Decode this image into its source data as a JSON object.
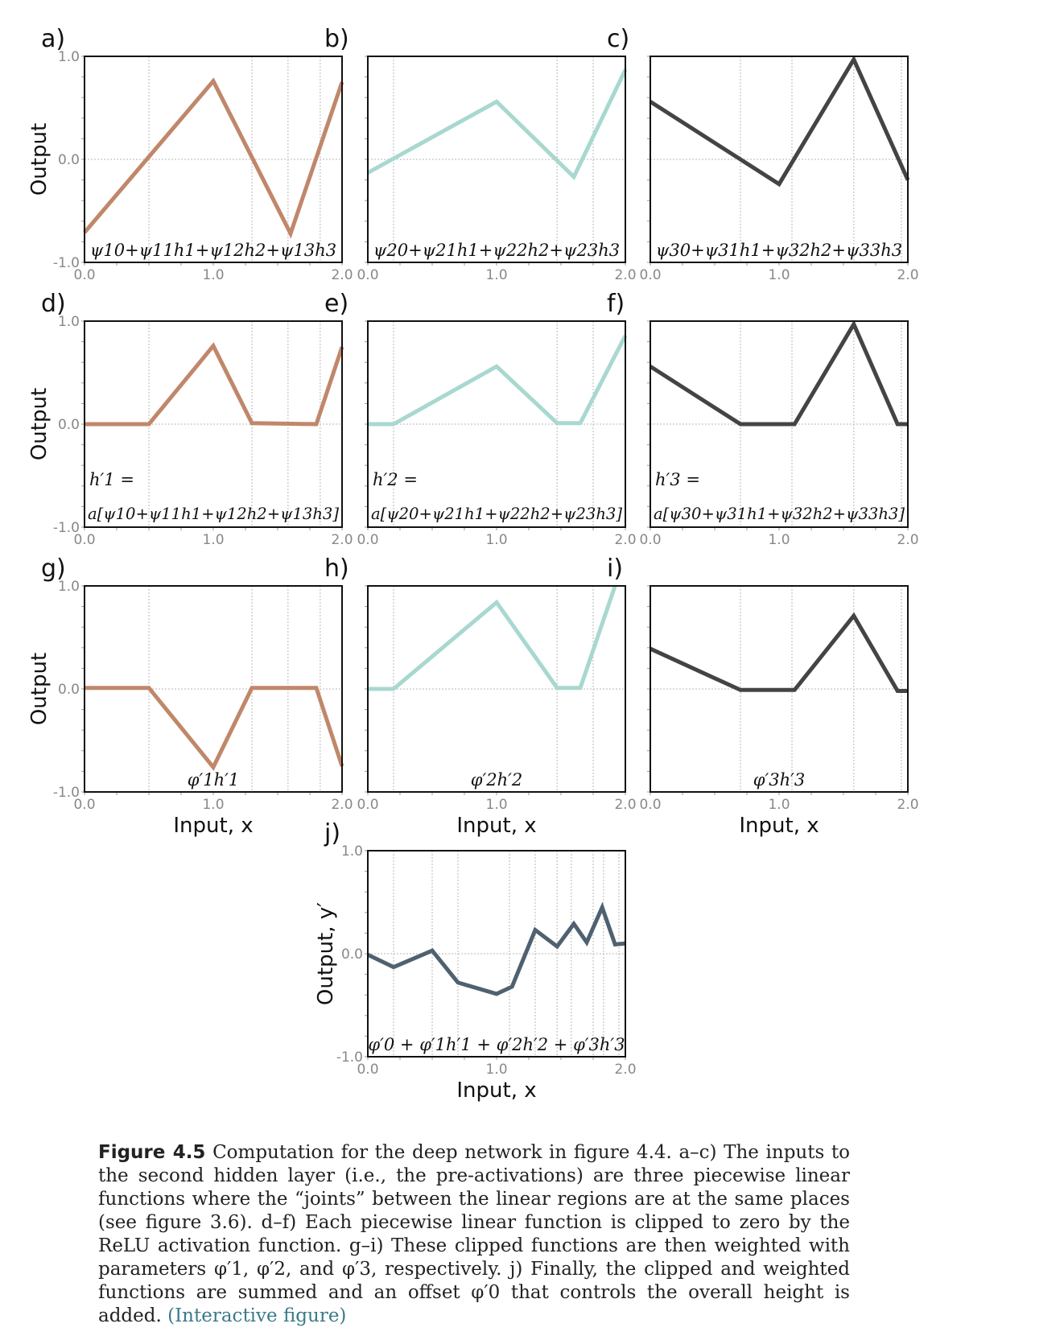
{
  "figure": {
    "caption_label": "Figure 4.5",
    "caption_text": "Computation for the deep network in figure 4.4. a–c) The inputs to the second hidden layer (i.e., the pre-activations) are three piecewise linear functions where the “joints” between the linear regions are at the same places (see figure 3.6). d–f) Each piecewise linear function is clipped to zero by the ReLU activation function. g–i) These clipped functions are then weighted with parameters φ′1, φ′2, and φ′3, respectively. j) Finally, the clipped and weighted functions are summed and an offset φ′0 that controls the overall height is added.",
    "caption_link": "(Interactive figure)"
  },
  "colors": {
    "orange": "#c0876a",
    "teal": "#a8d8d0",
    "dark": "#444444",
    "slate": "#4f6170",
    "grid": "#cfcfcf",
    "tick_label": "#888888"
  },
  "chart_data": [
    {
      "panel_label": "a)",
      "type": "line",
      "color": "orange",
      "ylabel": "Output",
      "xlabel": "",
      "xlim": [
        0,
        2
      ],
      "ylim": [
        -1,
        1
      ],
      "xticks": [
        "0.0",
        "1.0",
        "2.0"
      ],
      "yticks": [
        "-1.0",
        "0.0",
        "1.0"
      ],
      "x": [
        0,
        1.0,
        1.6,
        2.0
      ],
      "y": [
        -0.71,
        0.76,
        -0.72,
        0.75
      ],
      "annotation": [
        "ψ10+ψ11h1+ψ12h2+ψ13h3"
      ],
      "vlines": [
        0.5,
        1.3,
        1.58,
        1.83
      ]
    },
    {
      "panel_label": "b)",
      "type": "line",
      "color": "teal",
      "ylabel": "",
      "xlabel": "",
      "xlim": [
        0,
        2
      ],
      "ylim": [
        -1,
        1
      ],
      "xticks": [
        "0.0",
        "1.0",
        "2.0"
      ],
      "yticks": [],
      "x": [
        0,
        1.0,
        1.6,
        2.0
      ],
      "y": [
        -0.13,
        0.56,
        -0.17,
        0.87
      ],
      "annotation": [
        "ψ20+ψ21h1+ψ22h2+ψ23h3"
      ],
      "vlines": [
        0.2,
        1.47,
        1.75
      ]
    },
    {
      "panel_label": "c)",
      "type": "line",
      "color": "dark",
      "ylabel": "",
      "xlabel": "",
      "xlim": [
        0,
        2
      ],
      "ylim": [
        -1,
        1
      ],
      "xticks": [
        "0.0",
        "1.0",
        "2.0"
      ],
      "yticks": [],
      "x": [
        0,
        1.0,
        1.58,
        2.0
      ],
      "y": [
        0.56,
        -0.24,
        0.97,
        -0.2
      ],
      "annotation": [
        "ψ30+ψ31h1+ψ32h2+ψ33h3"
      ],
      "vlines": [
        0.7,
        1.1,
        1.58,
        1.95
      ]
    },
    {
      "panel_label": "d)",
      "type": "line",
      "color": "orange",
      "ylabel": "Output",
      "xlabel": "",
      "xlim": [
        0,
        2
      ],
      "ylim": [
        -1,
        1
      ],
      "xticks": [
        "0.0",
        "1.0",
        "2.0"
      ],
      "yticks": [
        "-1.0",
        "0.0",
        "1.0"
      ],
      "x": [
        0,
        0.5,
        1.0,
        1.3,
        1.8,
        2.0
      ],
      "y": [
        0,
        0,
        0.76,
        0.01,
        0,
        0.75
      ],
      "annotation": [
        "h′1 =",
        "a[ψ10+ψ11h1+ψ12h2+ψ13h3]"
      ],
      "vlines": [
        0.5,
        1.3,
        1.58,
        1.83
      ]
    },
    {
      "panel_label": "e)",
      "type": "line",
      "color": "teal",
      "ylabel": "",
      "xlabel": "",
      "xlim": [
        0,
        2
      ],
      "ylim": [
        -1,
        1
      ],
      "xticks": [
        "0.0",
        "1.0",
        "2.0"
      ],
      "yticks": [],
      "x": [
        0,
        0.2,
        1.0,
        1.47,
        1.65,
        2.0
      ],
      "y": [
        0,
        0,
        0.56,
        0.01,
        0.01,
        0.86
      ],
      "annotation": [
        "h′2 =",
        "a[ψ20+ψ21h1+ψ22h2+ψ23h3]"
      ],
      "vlines": [
        0.2,
        1.47,
        1.75
      ]
    },
    {
      "panel_label": "f)",
      "type": "line",
      "color": "dark",
      "ylabel": "",
      "xlabel": "",
      "xlim": [
        0,
        2
      ],
      "ylim": [
        -1,
        1
      ],
      "xticks": [
        "0.0",
        "1.0",
        "2.0"
      ],
      "yticks": [],
      "x": [
        0,
        0.7,
        1.12,
        1.58,
        1.92,
        2.0
      ],
      "y": [
        0.56,
        0,
        0,
        0.97,
        0,
        0
      ],
      "annotation": [
        "h′3 =",
        "a[ψ30+ψ31h1+ψ32h2+ψ33h3]"
      ],
      "vlines": [
        0.7,
        1.1,
        1.58,
        1.95
      ]
    },
    {
      "panel_label": "g)",
      "type": "line",
      "color": "orange",
      "ylabel": "Output",
      "xlabel": "Input, x",
      "xlim": [
        0,
        2
      ],
      "ylim": [
        -1,
        1
      ],
      "xticks": [
        "0.0",
        "1.0",
        "2.0"
      ],
      "yticks": [
        "-1.0",
        "0.0",
        "1.0"
      ],
      "x": [
        0,
        0.5,
        1.0,
        1.3,
        1.8,
        2.0
      ],
      "y": [
        0.01,
        0.01,
        -0.76,
        0.01,
        0.01,
        -0.75
      ],
      "annotation": [
        "φ′1h′1"
      ],
      "vlines": [
        0.5,
        1.3,
        1.58,
        1.83
      ]
    },
    {
      "panel_label": "h)",
      "type": "line",
      "color": "teal",
      "ylabel": "",
      "xlabel": "Input, x",
      "xlim": [
        0,
        2
      ],
      "ylim": [
        -1,
        1
      ],
      "xticks": [
        "0.0",
        "1.0",
        "2.0"
      ],
      "yticks": [],
      "x": [
        0,
        0.2,
        1.0,
        1.47,
        1.65,
        1.92
      ],
      "y": [
        0,
        0,
        0.84,
        0.01,
        0.01,
        1.0
      ],
      "annotation": [
        "φ′2h′2"
      ],
      "vlines": [
        0.2,
        1.47,
        1.75
      ]
    },
    {
      "panel_label": "i)",
      "type": "line",
      "color": "dark",
      "ylabel": "",
      "xlabel": "Input, x",
      "xlim": [
        0,
        2
      ],
      "ylim": [
        -1,
        1
      ],
      "xticks": [
        "0.0",
        "1.0",
        "2.0"
      ],
      "yticks": [],
      "x": [
        0,
        0.7,
        1.12,
        1.58,
        1.92,
        2.0
      ],
      "y": [
        0.39,
        -0.01,
        -0.01,
        0.71,
        -0.02,
        -0.02
      ],
      "annotation": [
        "φ′3h′3"
      ],
      "vlines": [
        0.7,
        1.1,
        1.58,
        1.95
      ]
    },
    {
      "panel_label": "j)",
      "type": "line",
      "color": "slate",
      "ylabel": "Output, y′",
      "xlabel": "Input, x",
      "xlim": [
        0,
        2
      ],
      "ylim": [
        -1,
        1
      ],
      "xticks": [
        "0.0",
        "1.0",
        "2.0"
      ],
      "yticks": [
        "-1.0",
        "0.0",
        "1.0"
      ],
      "x": [
        0,
        0.2,
        0.5,
        0.7,
        1.0,
        1.12,
        1.3,
        1.47,
        1.6,
        1.7,
        1.82,
        1.92,
        2.0
      ],
      "y": [
        -0.01,
        -0.13,
        0.03,
        -0.28,
        -0.39,
        -0.32,
        0.23,
        0.07,
        0.29,
        0.11,
        0.45,
        0.09,
        0.1
      ],
      "annotation": [
        "φ′0 + φ′1h′1 + φ′2h′2 + φ′3h′3"
      ],
      "vlines": [
        0.2,
        0.5,
        0.7,
        1.1,
        1.3,
        1.47,
        1.58,
        1.75,
        1.83,
        1.95
      ]
    }
  ]
}
